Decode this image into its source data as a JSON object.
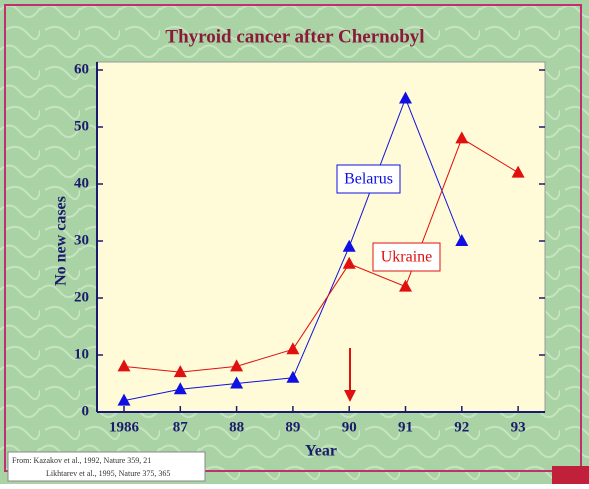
{
  "chart_data": {
    "type": "line",
    "title": "Thyroid cancer after Chernobyl",
    "x_label": "Year",
    "y_label": "No new cases",
    "categories": [
      "1986",
      "87",
      "88",
      "89",
      "90",
      "91",
      "92",
      "93"
    ],
    "series": [
      {
        "name": "Belarus",
        "color": "#1010e0",
        "values": [
          2,
          4,
          5,
          6,
          29,
          55,
          30,
          null
        ]
      },
      {
        "name": "Ukraine",
        "color": "#e01010",
        "values": [
          8,
          7,
          8,
          11,
          26,
          22,
          48,
          42
        ]
      }
    ],
    "ylim": [
      0,
      60
    ],
    "yticks": [
      0,
      10,
      20,
      30,
      40,
      50,
      60
    ],
    "grid": false,
    "citation": [
      "From: Kazakov et al., 1992, Nature 359, 21",
      "Likhtarev et al., 1995, Nature 375, 365"
    ]
  }
}
